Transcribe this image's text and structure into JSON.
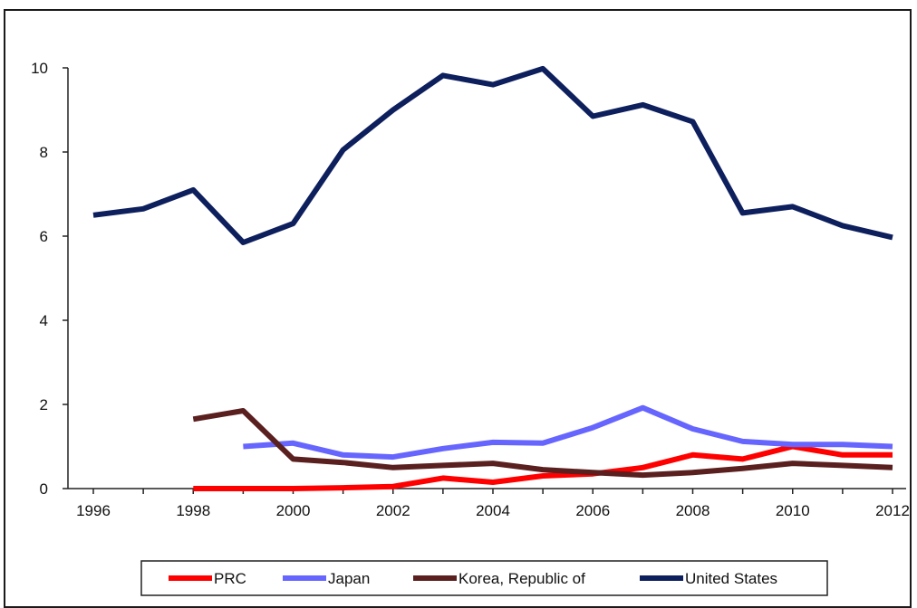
{
  "chart_data": {
    "type": "line",
    "title": "",
    "xlabel": "",
    "ylabel": "",
    "xlim": [
      1996,
      2012
    ],
    "ylim": [
      0,
      10
    ],
    "x_ticks": [
      "1996",
      "1998",
      "2000",
      "2002",
      "2004",
      "2006",
      "2008",
      "2010",
      "2012"
    ],
    "y_ticks": [
      "0",
      "2",
      "4",
      "6",
      "8",
      "10"
    ],
    "grid": false,
    "legend_position": "bottom",
    "series": [
      {
        "name": "PRC",
        "color": "#ff0000",
        "x": [
          1998,
          1999,
          2000,
          2001,
          2002,
          2003,
          2004,
          2005,
          2006,
          2007,
          2008,
          2009,
          2010,
          2011,
          2012
        ],
        "y": [
          0.0,
          0.0,
          0.0,
          0.02,
          0.05,
          0.25,
          0.15,
          0.3,
          0.35,
          0.5,
          0.8,
          0.7,
          1.0,
          0.8,
          0.8
        ]
      },
      {
        "name": "Japan",
        "color": "#6666ff",
        "x": [
          1999,
          2000,
          2001,
          2002,
          2003,
          2004,
          2005,
          2006,
          2007,
          2008,
          2009,
          2010,
          2011,
          2012
        ],
        "y": [
          1.0,
          1.08,
          0.8,
          0.75,
          0.95,
          1.1,
          1.08,
          1.45,
          1.92,
          1.42,
          1.12,
          1.05,
          1.05,
          1.0
        ]
      },
      {
        "name": "Korea, Republic of",
        "color": "#5a1f1f",
        "x": [
          1998,
          1999,
          2000,
          2001,
          2002,
          2003,
          2004,
          2005,
          2006,
          2007,
          2008,
          2009,
          2010,
          2011,
          2012
        ],
        "y": [
          1.65,
          1.85,
          0.7,
          0.62,
          0.5,
          0.55,
          0.6,
          0.45,
          0.38,
          0.32,
          0.38,
          0.48,
          0.6,
          0.55,
          0.5
        ]
      },
      {
        "name": "United States",
        "color": "#0d1f5c",
        "x": [
          1996,
          1997,
          1998,
          1999,
          2000,
          2001,
          2002,
          2003,
          2004,
          2005,
          2006,
          2007,
          2008,
          2009,
          2010,
          2011,
          2012
        ],
        "y": [
          6.5,
          6.65,
          7.1,
          5.85,
          6.3,
          8.05,
          9.0,
          9.82,
          9.6,
          9.98,
          8.85,
          9.12,
          8.72,
          6.55,
          6.7,
          6.25,
          5.97
        ]
      }
    ]
  }
}
